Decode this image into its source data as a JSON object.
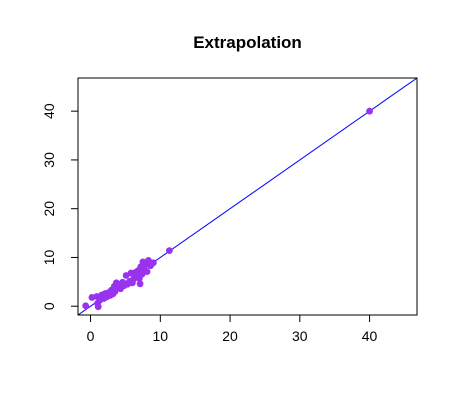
{
  "chart_data": {
    "type": "scatter",
    "title": "Extrapolation",
    "xlabel": "",
    "ylabel": "",
    "xlim": [
      -1.8,
      46.8
    ],
    "ylim": [
      -1.8,
      46.8
    ],
    "x_ticks": [
      0,
      10,
      20,
      30,
      40
    ],
    "y_ticks": [
      0,
      10,
      20,
      30,
      40
    ],
    "grid": false,
    "point_color": "#9933ee",
    "line_color": "#0000ff",
    "reference_line": {
      "intercept": 0,
      "slope": 1
    },
    "points": [
      {
        "x": -0.7,
        "y": 0.1
      },
      {
        "x": 0.2,
        "y": 1.8
      },
      {
        "x": 0.9,
        "y": 2.0
      },
      {
        "x": 1.0,
        "y": 0.6
      },
      {
        "x": 1.1,
        "y": -0.1
      },
      {
        "x": 1.3,
        "y": 1.2
      },
      {
        "x": 1.6,
        "y": 2.3
      },
      {
        "x": 1.9,
        "y": 1.6
      },
      {
        "x": 2.1,
        "y": 2.6
      },
      {
        "x": 2.3,
        "y": 1.9
      },
      {
        "x": 2.6,
        "y": 2.8
      },
      {
        "x": 2.8,
        "y": 2.2
      },
      {
        "x": 3.0,
        "y": 3.3
      },
      {
        "x": 3.2,
        "y": 2.5
      },
      {
        "x": 3.4,
        "y": 4.1
      },
      {
        "x": 3.5,
        "y": 3.0
      },
      {
        "x": 3.7,
        "y": 4.8
      },
      {
        "x": 3.9,
        "y": 3.9
      },
      {
        "x": 4.1,
        "y": 4.4
      },
      {
        "x": 4.3,
        "y": 3.6
      },
      {
        "x": 4.6,
        "y": 4.9
      },
      {
        "x": 4.8,
        "y": 4.2
      },
      {
        "x": 5.1,
        "y": 6.3
      },
      {
        "x": 5.3,
        "y": 4.5
      },
      {
        "x": 5.6,
        "y": 5.1
      },
      {
        "x": 5.8,
        "y": 6.8
      },
      {
        "x": 6.0,
        "y": 4.8
      },
      {
        "x": 6.2,
        "y": 5.6
      },
      {
        "x": 6.4,
        "y": 6.9
      },
      {
        "x": 6.6,
        "y": 6.1
      },
      {
        "x": 6.8,
        "y": 7.3
      },
      {
        "x": 7.0,
        "y": 5.7
      },
      {
        "x": 7.1,
        "y": 4.6
      },
      {
        "x": 7.2,
        "y": 8.1
      },
      {
        "x": 7.4,
        "y": 6.6
      },
      {
        "x": 7.5,
        "y": 9.1
      },
      {
        "x": 7.7,
        "y": 7.6
      },
      {
        "x": 7.9,
        "y": 8.6
      },
      {
        "x": 8.1,
        "y": 7.1
      },
      {
        "x": 8.3,
        "y": 9.4
      },
      {
        "x": 8.6,
        "y": 8.3
      },
      {
        "x": 9.0,
        "y": 8.9
      },
      {
        "x": 11.3,
        "y": 11.4
      },
      {
        "x": 40.0,
        "y": 40.0
      }
    ]
  }
}
